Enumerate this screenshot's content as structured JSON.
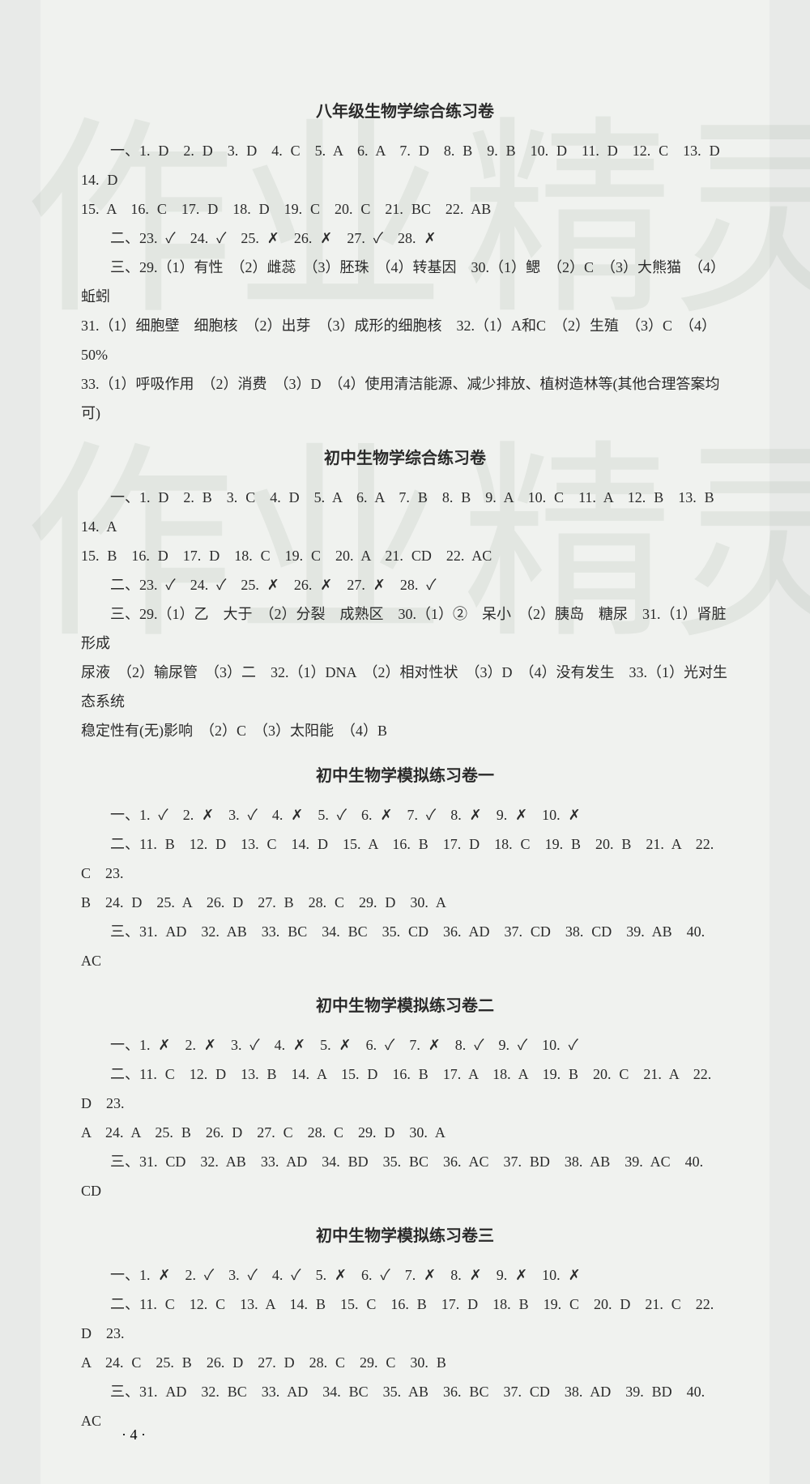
{
  "watermarks": [
    "作",
    "业",
    "精",
    "灵",
    "作",
    "业",
    "精",
    "灵"
  ],
  "sections": [
    {
      "title": "八年级生物学综合练习卷",
      "lines": [
        "一、1. D　2. D　3. D　4. C　5. A　6. A　7. D　8. B　9. B　10. D　11. D　12. C　13. D　14. D",
        "15. A　16. C　17. D　18. D　19. C　20. C　21. BC　22. AB",
        "二、23. ✓　24. ✓　25. ✗　26. ✗　27. ✓　28. ✗",
        "三、29.（1）有性　（2）雌蕊　（3）胚珠　（4）转基因　30.（1）鳃　（2）C　（3）大熊猫　（4）蚯蚓",
        "31.（1）细胞壁　细胞核　（2）出芽　（3）成形的细胞核　32.（1）A和C　（2）生殖　（3）C　（4）50%",
        "33.（1）呼吸作用　（2）消费　（3）D　（4）使用清洁能源、减少排放、植树造林等(其他合理答案均可)"
      ],
      "indents": [
        true,
        false,
        true,
        true,
        false,
        false
      ]
    },
    {
      "title": "初中生物学综合练习卷",
      "lines": [
        "一、1. D　2. B　3. C　4. D　5. A　6. A　7. B　8. B　9. A　10. C　11. A　12. B　13. B　14. A",
        "15. B　16. D　17. D　18. C　19. C　20. A　21. CD　22. AC",
        "二、23. ✓　24. ✓　25. ✗　26. ✗　27. ✗　28. ✓",
        "三、29.（1）乙　大于　（2）分裂　成熟区　30.（1）②　呆小　（2）胰岛　糖尿　31.（1）肾脏　形成",
        "尿液　（2）输尿管　（3）二　32.（1）DNA　（2）相对性状　（3）D　（4）没有发生　33.（1）光对生态系统",
        "稳定性有(无)影响　（2）C　（3）太阳能　（4）B"
      ],
      "indents": [
        true,
        false,
        true,
        true,
        false,
        false
      ]
    },
    {
      "title": "初中生物学模拟练习卷一",
      "lines": [
        "一、1. ✓　2. ✗　3. ✓　4. ✗　5. ✓　6. ✗　7. ✓　8. ✗　9. ✗　10. ✗",
        "二、11. B　12. D　13. C　14. D　15. A　16. B　17. D　18. C　19. B　20. B　21. A　22. C　23.",
        "B　24. D　25. A　26. D　27. B　28. C　29. D　30. A",
        "三、31. AD　32. AB　33. BC　34. BC　35. CD　36. AD　37. CD　38. CD　39. AB　40. AC"
      ],
      "indents": [
        true,
        true,
        false,
        true
      ]
    },
    {
      "title": "初中生物学模拟练习卷二",
      "lines": [
        "一、1. ✗　2. ✗　3. ✓　4. ✗　5. ✗　6. ✓　7. ✗　8. ✓　9. ✓　10. ✓",
        "二、11. C　12. D　13. B　14. A　15. D　16. B　17. A　18. A　19. B　20. C　21. A　22. D　23.",
        "A　24. A　25. B　26. D　27. C　28. C　29. D　30. A",
        "三、31. CD　32. AB　33. AD　34. BD　35. BC　36. AC　37. BD　38. AB　39. AC　40. CD"
      ],
      "indents": [
        true,
        true,
        false,
        true
      ]
    },
    {
      "title": "初中生物学模拟练习卷三",
      "lines": [
        "一、1. ✗　2. ✓　3. ✓　4. ✓　5. ✗　6. ✓　7. ✗　8. ✗　9. ✗　10. ✗",
        "二、11. C　12. C　13. A　14. B　15. C　16. B　17. D　18. B　19. C　20. D　21. C　22. D　23.",
        "A　24. C　25. B　26. D　27. D　28. C　29. C　30. B",
        "三、31. AD　32. BC　33. AD　34. BC　35. AB　36. BC　37. CD　38. AD　39. BD　40. AC"
      ],
      "indents": [
        true,
        true,
        false,
        true
      ]
    }
  ],
  "page_number": "· 4 ·",
  "style": {
    "background_color": "#e8eae8",
    "page_background": "#f0f2ef",
    "text_color": "#2a2a2a",
    "watermark_color": "rgba(150,160,150,0.15)",
    "body_fontsize": 18,
    "title_fontsize": 20,
    "watermark_fontsize": 260,
    "line_height": 2.0
  }
}
